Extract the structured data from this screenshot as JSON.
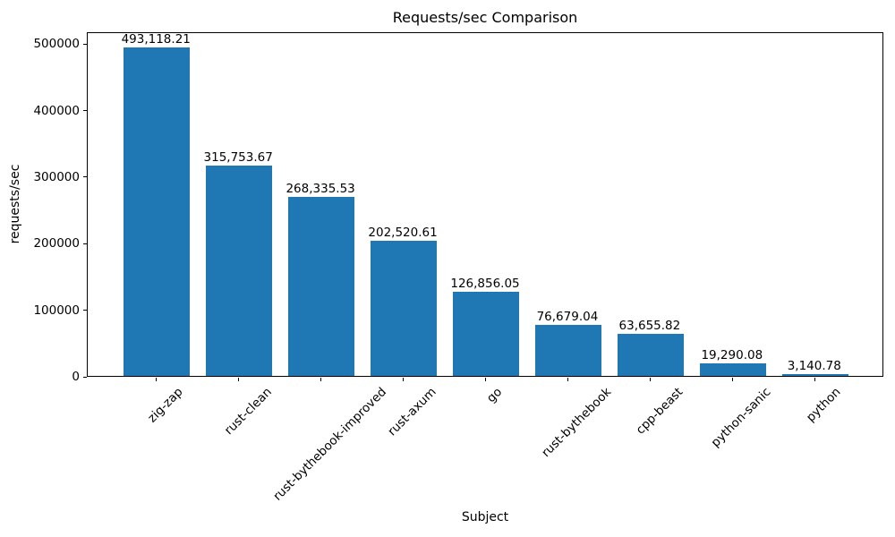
{
  "colors": {
    "bar": "#1f77b4",
    "axis": "#000000",
    "text": "#000000",
    "background": "#ffffff"
  },
  "chart_data": {
    "type": "bar",
    "title": "Requests/sec Comparison",
    "xlabel": "Subject",
    "ylabel": "requests/sec",
    "categories": [
      "zig-zap",
      "rust-clean",
      "rust-bythebook-improved",
      "rust-axum",
      "go",
      "rust-bythebook",
      "cpp-beast",
      "python-sanic",
      "python"
    ],
    "values": [
      493118.21,
      315753.67,
      268335.53,
      202520.61,
      126856.05,
      76679.04,
      63655.82,
      19290.08,
      3140.78
    ],
    "value_labels": [
      "493,118.21",
      "315,753.67",
      "268,335.53",
      "202,520.61",
      "126,856.05",
      "76,679.04",
      "63,655.82",
      "19,290.08",
      "3,140.78"
    ],
    "yticks": [
      0,
      100000,
      200000,
      300000,
      400000,
      500000
    ],
    "ytick_labels": [
      "0",
      "100000",
      "200000",
      "300000",
      "400000",
      "500000"
    ],
    "ylim": [
      0,
      517774
    ],
    "xtick_rotation_deg": 45,
    "grid": false,
    "legend": "none",
    "bar_color": "#1f77b4"
  }
}
